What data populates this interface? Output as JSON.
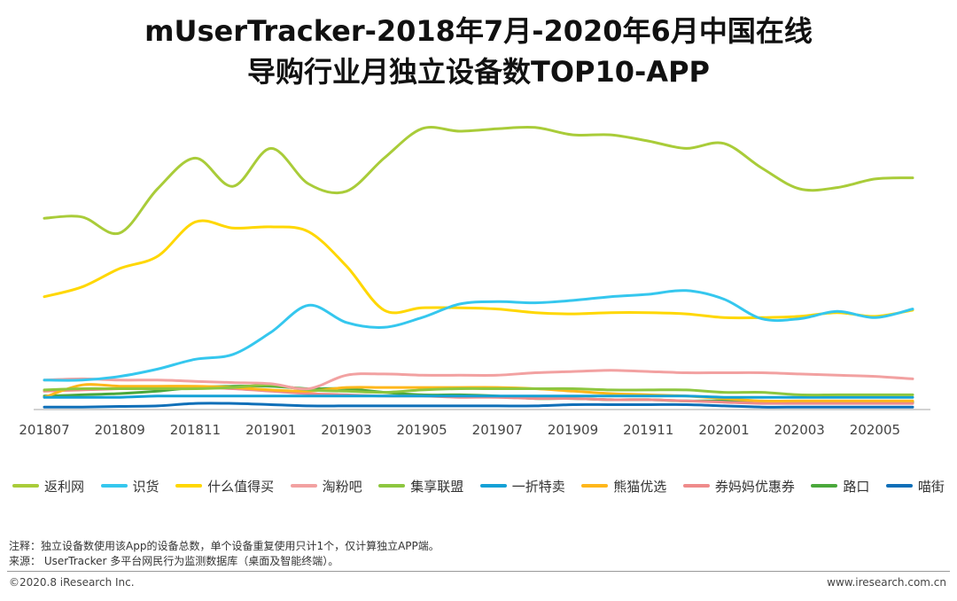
{
  "header": {
    "title_line1": "mUserTracker-2018年7月-2020年6月中国在线",
    "title_line2": "导购行业月独立设备数TOP10-APP"
  },
  "chart_data": {
    "type": "line",
    "title": "mUserTracker-2018年7月-2020年6月中国在线导购行业月独立设备数TOP10-APP",
    "xlabel": "",
    "ylabel": "",
    "ylim": [
      0,
      2400
    ],
    "x": [
      "201807",
      "201808",
      "201809",
      "201810",
      "201811",
      "201812",
      "201901",
      "201902",
      "201903",
      "201904",
      "201905",
      "201906",
      "201907",
      "201908",
      "201909",
      "201910",
      "201911",
      "201912",
      "202001",
      "202002",
      "202003",
      "202004",
      "202005",
      "202006"
    ],
    "x_tick_labels": [
      "201807",
      "201809",
      "201811",
      "201901",
      "201903",
      "201905",
      "201907",
      "201909",
      "201911",
      "202001",
      "202003",
      "202005"
    ],
    "grid": false,
    "legend_position": "bottom",
    "series": [
      {
        "name": "返利网",
        "color": "#a9cc39",
        "values": [
          1560,
          1570,
          1440,
          1800,
          2050,
          1820,
          2130,
          1840,
          1780,
          2050,
          2290,
          2270,
          2290,
          2300,
          2240,
          2240,
          2190,
          2130,
          2170,
          1970,
          1800,
          1810,
          1880,
          1890
        ]
      },
      {
        "name": "识货",
        "color": "#35c7ee",
        "values": [
          240,
          240,
          270,
          330,
          410,
          450,
          630,
          850,
          710,
          670,
          750,
          860,
          880,
          870,
          890,
          920,
          940,
          970,
          900,
          740,
          740,
          800,
          750,
          820
        ]
      },
      {
        "name": "什么值得买",
        "color": "#ffd700",
        "values": [
          920,
          1000,
          1150,
          1250,
          1530,
          1480,
          1490,
          1450,
          1170,
          810,
          830,
          830,
          820,
          790,
          780,
          790,
          790,
          780,
          750,
          750,
          760,
          790,
          760,
          810
        ]
      },
      {
        "name": "淘粉吧",
        "color": "#f2a1a1",
        "values": [
          240,
          250,
          240,
          240,
          230,
          220,
          210,
          170,
          280,
          290,
          280,
          280,
          280,
          300,
          310,
          320,
          310,
          300,
          300,
          300,
          290,
          280,
          270,
          250
        ]
      },
      {
        "name": "集享联盟",
        "color": "#8dc63f",
        "values": [
          160,
          170,
          170,
          170,
          170,
          180,
          200,
          160,
          150,
          140,
          160,
          170,
          170,
          170,
          170,
          160,
          160,
          160,
          140,
          140,
          120,
          120,
          120,
          120
        ]
      },
      {
        "name": "一折特卖",
        "color": "#14a1d6",
        "values": [
          100,
          100,
          100,
          110,
          110,
          110,
          110,
          110,
          110,
          110,
          110,
          110,
          110,
          110,
          110,
          110,
          110,
          110,
          100,
          100,
          100,
          100,
          100,
          100
        ]
      },
      {
        "name": "熊猫优选",
        "color": "#ffb71b",
        "values": [
          100,
          200,
          190,
          190,
          190,
          180,
          160,
          150,
          180,
          180,
          180,
          180,
          180,
          170,
          150,
          130,
          120,
          110,
          90,
          70,
          70,
          70,
          70,
          70
        ]
      },
      {
        "name": "券妈妈优惠券",
        "color": "#ef8b8b",
        "values": [
          150,
          160,
          170,
          180,
          180,
          170,
          150,
          130,
          120,
          110,
          110,
          100,
          100,
          90,
          90,
          80,
          80,
          70,
          60,
          50,
          50,
          50,
          50,
          50
        ]
      },
      {
        "name": "路口",
        "color": "#4aa83b",
        "values": [
          110,
          120,
          130,
          150,
          180,
          190,
          190,
          170,
          170,
          140,
          120,
          120,
          110,
          90,
          90,
          80,
          80,
          70,
          70,
          60,
          60,
          60,
          60,
          60
        ]
      },
      {
        "name": "喵街",
        "color": "#0f6fb8",
        "values": [
          20,
          20,
          25,
          30,
          50,
          50,
          40,
          30,
          30,
          30,
          30,
          30,
          30,
          30,
          40,
          40,
          40,
          40,
          30,
          20,
          20,
          20,
          20,
          20
        ]
      }
    ]
  },
  "notes": {
    "note_line": "注释：独立设备数使用该App的设备总数，单个设备重复使用只计1个，仅计算独立APP端。",
    "source_line": "来源： UserTracker 多平台网民行为监测数据库（桌面及智能终端）。"
  },
  "footer": {
    "copyright": "©2020.8 iResearch Inc.",
    "website": "www.iresearch.com.cn"
  }
}
